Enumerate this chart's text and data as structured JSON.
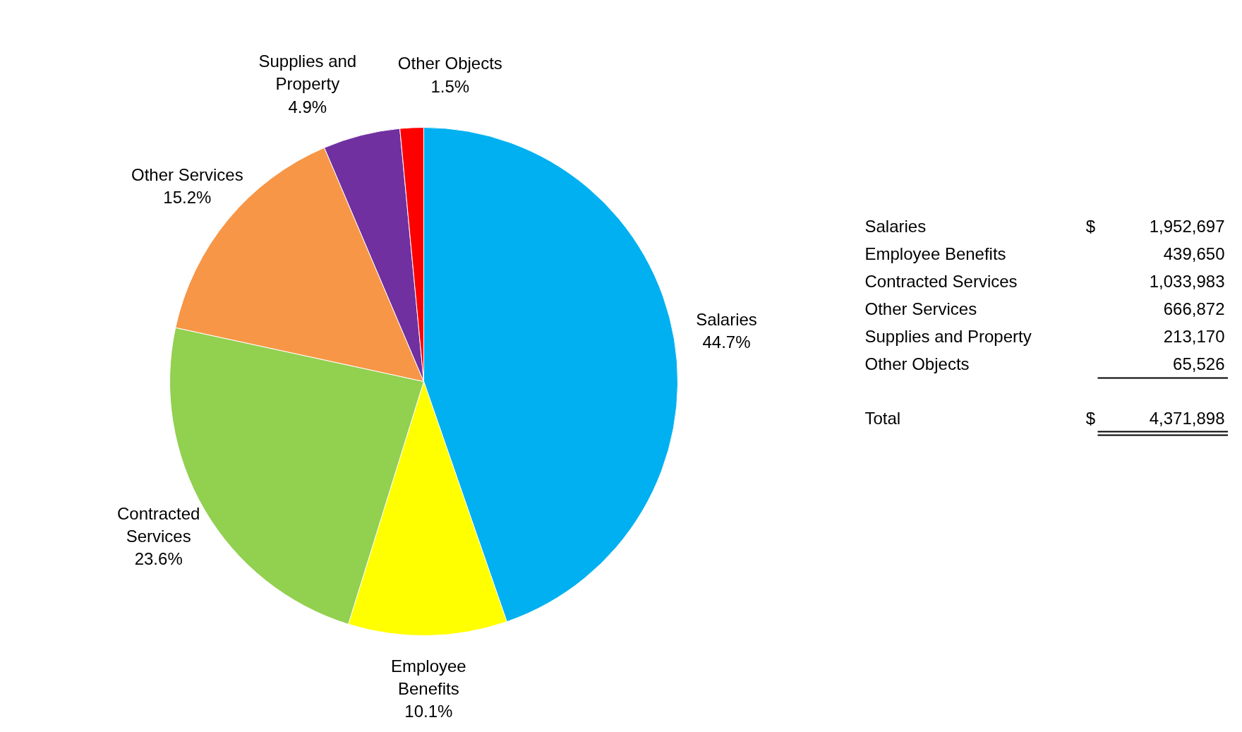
{
  "chart_data": {
    "type": "pie",
    "categories": [
      "Salaries",
      "Employee Benefits",
      "Contracted Services",
      "Other Services",
      "Supplies and Property",
      "Other Objects"
    ],
    "values": [
      44.7,
      10.1,
      23.6,
      15.2,
      4.9,
      1.5
    ],
    "colors": [
      "#00b0f0",
      "#ffff00",
      "#92d050",
      "#f79646",
      "#7030a0",
      "#ff0000"
    ],
    "value_labels": [
      "44.7%",
      "10.1%",
      "23.6%",
      "15.2%",
      "4.9%",
      "1.5%"
    ],
    "data_labels": true,
    "annotations": [
      "$",
      "1,952,697",
      "439,650",
      "1,033,983",
      "666,872",
      "213,170",
      "65,526",
      "Total",
      "4,371,898"
    ]
  }
}
